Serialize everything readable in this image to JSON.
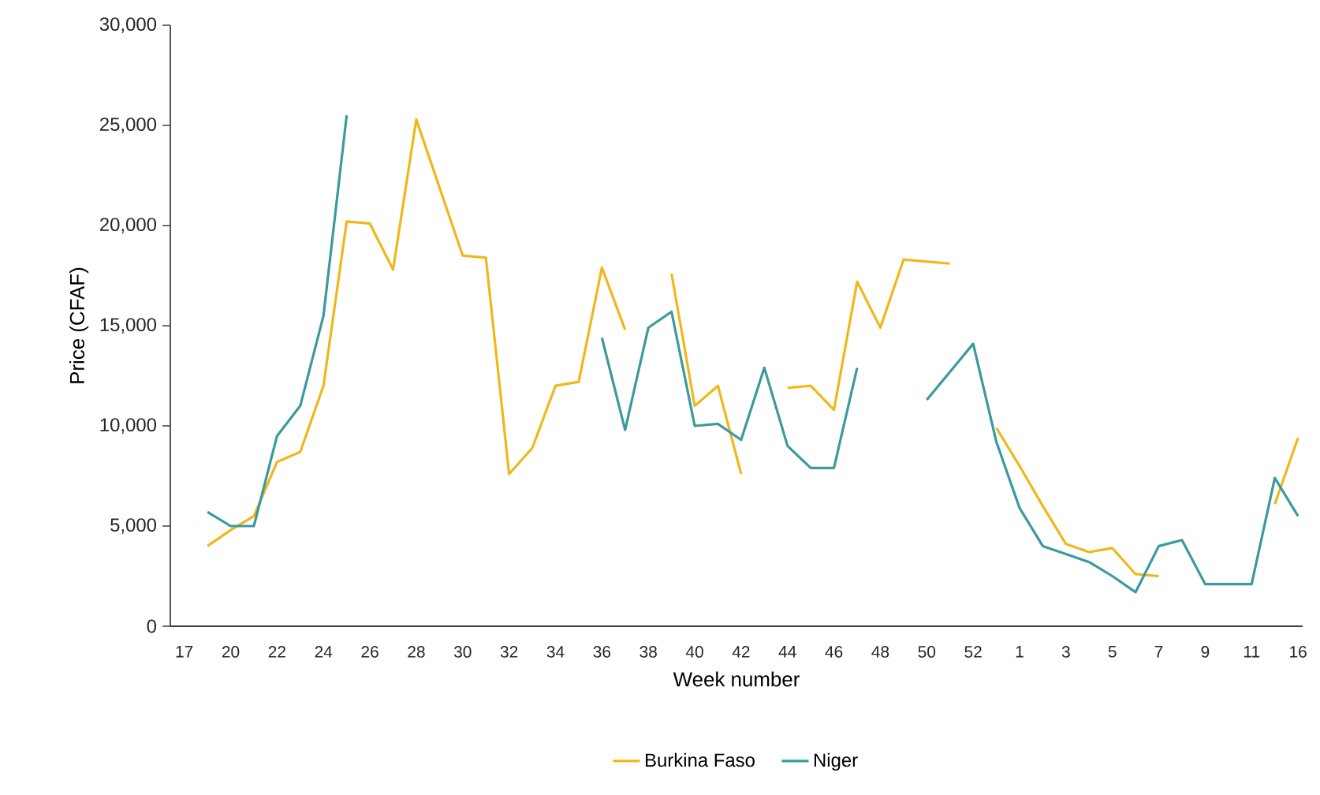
{
  "chart_data": {
    "type": "line",
    "xlabel": "Week number",
    "ylabel": "Price (CFAF)",
    "categories": [
      "17",
      null,
      "20",
      null,
      "22",
      null,
      "24",
      null,
      "26",
      null,
      "28",
      null,
      "30",
      null,
      "32",
      null,
      "34",
      null,
      "36",
      null,
      "38",
      null,
      "40",
      null,
      "42",
      null,
      "44",
      null,
      "46",
      null,
      "48",
      null,
      "50",
      null,
      "52",
      null,
      "1",
      null,
      "3",
      null,
      "5",
      null,
      "7",
      null,
      "9",
      null,
      "11",
      null,
      "16"
    ],
    "series": [
      {
        "name": "Burkina Faso",
        "color": "#f0b719",
        "values": [
          null,
          4000,
          4800,
          5500,
          8200,
          8700,
          12000,
          20200,
          20100,
          17800,
          25300,
          21900,
          18500,
          18400,
          7600,
          8900,
          12000,
          12200,
          17900,
          14800,
          null,
          17600,
          11000,
          12000,
          7600,
          null,
          11900,
          12000,
          10800,
          17200,
          14900,
          18300,
          18200,
          18100,
          null,
          9900,
          8000,
          6000,
          4100,
          3700,
          3900,
          2600,
          2500,
          null,
          null,
          null,
          null,
          6100,
          9400
        ]
      },
      {
        "name": "Niger",
        "color": "#3a9a9e",
        "values": [
          null,
          5700,
          5000,
          5000,
          9500,
          11000,
          15500,
          25500,
          null,
          null,
          null,
          null,
          null,
          null,
          null,
          null,
          null,
          null,
          14400,
          9800,
          14900,
          15700,
          10000,
          10100,
          9300,
          12900,
          9000,
          7900,
          7900,
          12900,
          null,
          null,
          11300,
          12700,
          14100,
          9200,
          5900,
          4000,
          3600,
          3200,
          2500,
          1700,
          4000,
          4300,
          2100,
          2100,
          2100,
          7400,
          5500
        ]
      }
    ],
    "ylim": [
      0,
      30000
    ],
    "yticks": [
      0,
      {
        "value": 5000,
        "label": "5,000"
      },
      {
        "value": 10000,
        "label": "10,000"
      },
      {
        "value": 15000,
        "label": "15,000"
      },
      {
        "value": 20000,
        "label": "20,000"
      },
      {
        "value": 25000,
        "label": "25,000"
      },
      {
        "value": 30000,
        "label": "30,000"
      }
    ],
    "grid": false,
    "legend": "bottom",
    "marker": "none",
    "line_style": "solid"
  }
}
